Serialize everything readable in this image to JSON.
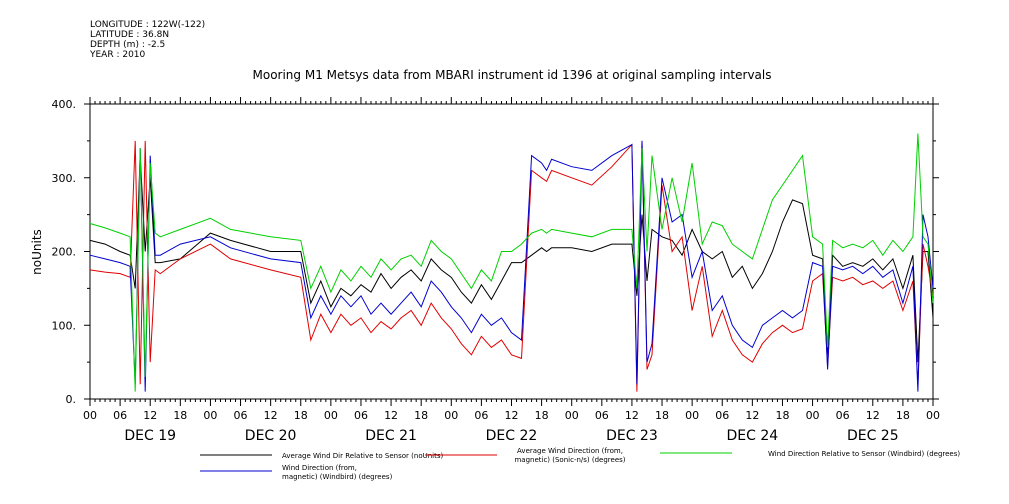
{
  "metadata": {
    "longitude": "LONGITUDE : 122W(-122)",
    "latitude": "LATITUDE : 36.8N",
    "depth": "DEPTH (m) : -2.5",
    "year": "YEAR : 2010"
  },
  "chart_data": {
    "type": "line",
    "title": "Mooring M1 Metsys data from MBARI instrument id 1396 at original sampling intervals",
    "ylabel": "noUnits",
    "xlabel": "",
    "ylim": [
      0,
      400
    ],
    "y_ticks": [
      "0.",
      "100.",
      "200.",
      "300.",
      "400."
    ],
    "x_hour_ticks": [
      "00",
      "06",
      "12",
      "18",
      "00",
      "06",
      "12",
      "18",
      "00",
      "06",
      "12",
      "18",
      "00",
      "06",
      "12",
      "18",
      "00",
      "06",
      "12",
      "18",
      "00",
      "06",
      "12",
      "18",
      "00",
      "06",
      "12",
      "18",
      "00"
    ],
    "x_day_labels": [
      "DEC 19",
      "DEC 20",
      "DEC 21",
      "DEC 22",
      "DEC 23",
      "DEC 24",
      "DEC 25"
    ],
    "x_unit": "hours since DEC 19 00:00",
    "xlim": [
      0,
      168
    ],
    "grid": false,
    "legend_position": "bottom",
    "series": [
      {
        "name": "Average Wind Dir Relative to Sensor (noUnits)",
        "color": "#000000",
        "x": [
          0,
          3,
          6,
          8,
          9,
          10,
          11,
          12,
          13,
          14,
          18,
          24,
          28,
          36,
          42,
          44,
          46,
          48,
          50,
          52,
          54,
          56,
          58,
          60,
          62,
          64,
          66,
          68,
          70,
          72,
          74,
          76,
          78,
          80,
          82,
          84,
          86,
          88,
          90,
          91,
          92,
          96,
          100,
          104,
          108,
          109,
          110,
          111,
          112,
          114,
          116,
          118,
          120,
          122,
          124,
          126,
          128,
          130,
          132,
          134,
          136,
          138,
          140,
          142,
          144,
          146,
          147,
          148,
          150,
          152,
          154,
          156,
          158,
          160,
          162,
          164,
          165,
          166,
          167,
          168
        ],
        "values": [
          215,
          210,
          200,
          195,
          150,
          330,
          200,
          300,
          185,
          185,
          190,
          225,
          215,
          200,
          200,
          130,
          160,
          125,
          150,
          140,
          155,
          145,
          170,
          150,
          165,
          175,
          160,
          190,
          175,
          165,
          145,
          130,
          155,
          135,
          160,
          185,
          185,
          195,
          205,
          200,
          205,
          205,
          200,
          210,
          210,
          140,
          250,
          160,
          230,
          220,
          215,
          195,
          230,
          200,
          190,
          200,
          165,
          180,
          150,
          170,
          200,
          240,
          270,
          265,
          195,
          190,
          60,
          195,
          180,
          185,
          180,
          190,
          175,
          190,
          150,
          195,
          50,
          200,
          200,
          110
        ]
      },
      {
        "name": "Average Wind Direction (from, magnetic) (Sonic-n/s) (degrees)",
        "color": "#e00000",
        "x": [
          0,
          3,
          6,
          8,
          9,
          10,
          11,
          12,
          13,
          14,
          18,
          24,
          28,
          36,
          42,
          44,
          46,
          48,
          50,
          52,
          54,
          56,
          58,
          60,
          62,
          64,
          66,
          68,
          70,
          72,
          74,
          76,
          78,
          80,
          82,
          84,
          86,
          88,
          90,
          91,
          92,
          96,
          100,
          104,
          108,
          109,
          110,
          111,
          112,
          114,
          116,
          118,
          120,
          122,
          124,
          126,
          128,
          130,
          132,
          134,
          136,
          138,
          140,
          142,
          144,
          146,
          147,
          148,
          150,
          152,
          154,
          156,
          158,
          160,
          162,
          164,
          165,
          166,
          167,
          168
        ],
        "values": [
          175,
          172,
          170,
          165,
          350,
          20,
          350,
          50,
          175,
          170,
          190,
          210,
          190,
          175,
          165,
          80,
          115,
          90,
          115,
          100,
          110,
          90,
          105,
          95,
          110,
          120,
          100,
          130,
          110,
          95,
          75,
          60,
          85,
          70,
          80,
          60,
          55,
          310,
          300,
          295,
          310,
          300,
          290,
          315,
          345,
          10,
          350,
          40,
          60,
          290,
          200,
          220,
          120,
          180,
          85,
          120,
          80,
          60,
          50,
          75,
          90,
          100,
          90,
          95,
          160,
          170,
          45,
          165,
          160,
          165,
          155,
          160,
          150,
          160,
          120,
          160,
          20,
          210,
          180,
          140
        ]
      },
      {
        "name": "Wind Direction (from, magnetic) (Windbird) (degrees)",
        "color": "#0000d0",
        "x": [
          0,
          3,
          6,
          8,
          9,
          10,
          11,
          12,
          13,
          14,
          18,
          24,
          28,
          36,
          42,
          44,
          46,
          48,
          50,
          52,
          54,
          56,
          58,
          60,
          62,
          64,
          66,
          68,
          70,
          72,
          74,
          76,
          78,
          80,
          82,
          84,
          86,
          88,
          90,
          91,
          92,
          96,
          100,
          104,
          108,
          109,
          110,
          111,
          112,
          114,
          116,
          118,
          120,
          122,
          124,
          126,
          128,
          130,
          132,
          134,
          136,
          138,
          140,
          142,
          144,
          146,
          147,
          148,
          150,
          152,
          154,
          156,
          158,
          160,
          162,
          164,
          165,
          166,
          167,
          168
        ],
        "values": [
          195,
          190,
          185,
          180,
          20,
          340,
          10,
          330,
          195,
          195,
          210,
          220,
          205,
          190,
          185,
          110,
          140,
          115,
          140,
          125,
          140,
          115,
          130,
          115,
          130,
          145,
          125,
          160,
          145,
          125,
          110,
          90,
          115,
          100,
          110,
          90,
          80,
          330,
          320,
          310,
          325,
          315,
          310,
          330,
          345,
          20,
          350,
          50,
          75,
          300,
          240,
          250,
          165,
          200,
          120,
          140,
          100,
          80,
          70,
          100,
          110,
          120,
          110,
          120,
          185,
          180,
          40,
          180,
          175,
          180,
          170,
          180,
          165,
          175,
          130,
          180,
          10,
          250,
          220,
          150
        ]
      },
      {
        "name": "Wind Direction Relative to Sensor (Windbird) (degrees)",
        "color": "#00d000",
        "x": [
          0,
          3,
          6,
          8,
          9,
          10,
          11,
          12,
          13,
          14,
          18,
          24,
          28,
          36,
          42,
          44,
          46,
          48,
          50,
          52,
          54,
          56,
          58,
          60,
          62,
          64,
          66,
          68,
          70,
          72,
          74,
          76,
          78,
          80,
          82,
          84,
          86,
          88,
          90,
          91,
          92,
          96,
          100,
          104,
          108,
          109,
          110,
          111,
          112,
          114,
          116,
          118,
          120,
          122,
          124,
          126,
          128,
          130,
          132,
          134,
          136,
          138,
          140,
          142,
          144,
          146,
          147,
          148,
          150,
          152,
          154,
          156,
          158,
          160,
          162,
          164,
          165,
          166,
          167,
          168
        ],
        "values": [
          238,
          232,
          225,
          220,
          10,
          340,
          30,
          320,
          225,
          220,
          230,
          245,
          230,
          220,
          215,
          150,
          180,
          145,
          175,
          160,
          180,
          165,
          190,
          175,
          190,
          195,
          180,
          215,
          200,
          190,
          170,
          150,
          175,
          160,
          200,
          200,
          210,
          225,
          230,
          225,
          230,
          225,
          220,
          230,
          230,
          150,
          340,
          200,
          330,
          230,
          300,
          240,
          320,
          210,
          240,
          235,
          210,
          200,
          190,
          230,
          270,
          290,
          310,
          330,
          220,
          210,
          70,
          215,
          205,
          210,
          205,
          215,
          195,
          215,
          200,
          220,
          360,
          220,
          210,
          130
        ]
      }
    ]
  }
}
